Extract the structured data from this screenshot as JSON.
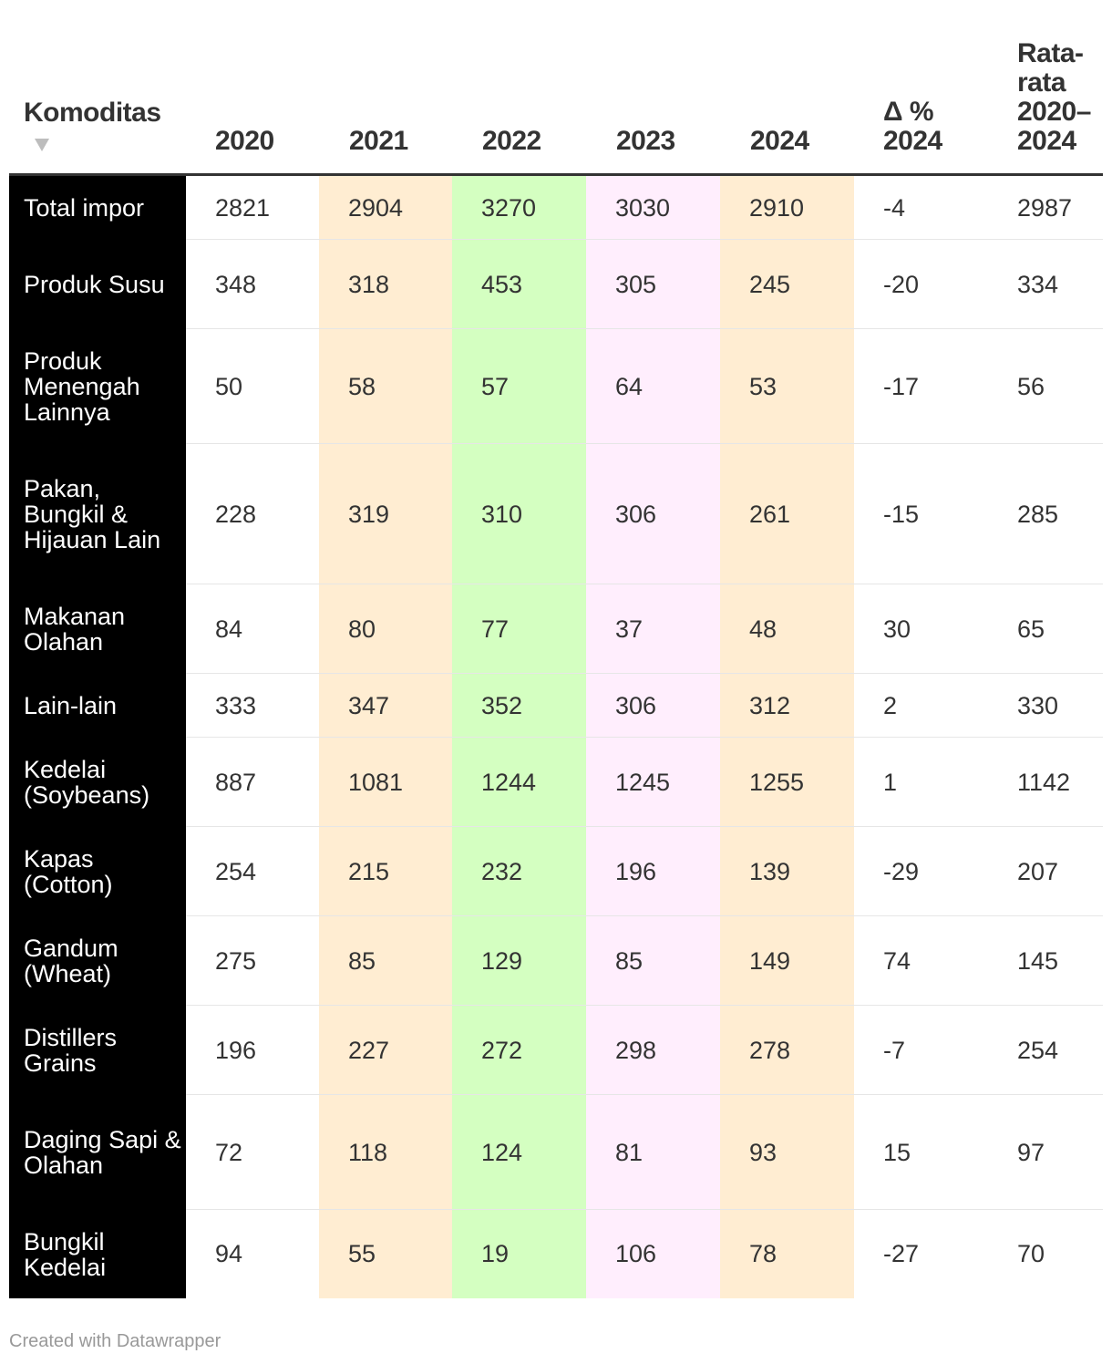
{
  "chart_data": {
    "type": "table",
    "columns": [
      "Komoditas",
      "2020",
      "2021",
      "2022",
      "2023",
      "2024",
      "Δ % 2024",
      "Rata-rata 2020–2024"
    ],
    "column_colors": [
      "#000000",
      "#ffffff",
      "#ffedd2",
      "#d4ffc1",
      "#ffeefd",
      "#ffedd2",
      "#ffffff",
      "#ffffff"
    ],
    "rows": [
      {
        "label": "Total impor",
        "values": [
          "2821",
          "2904",
          "3270",
          "3030",
          "2910",
          "-4",
          "2987"
        ]
      },
      {
        "label": "Produk Susu",
        "values": [
          "348",
          "318",
          "453",
          "305",
          "245",
          "-20",
          "334"
        ]
      },
      {
        "label": "Produk Menengah Lainnya",
        "values": [
          "50",
          "58",
          "57",
          "64",
          "53",
          "-17",
          "56"
        ]
      },
      {
        "label": "Pakan, Bungkil & Hijauan Lain",
        "values": [
          "228",
          "319",
          "310",
          "306",
          "261",
          "-15",
          "285"
        ]
      },
      {
        "label": "Makanan Olahan",
        "values": [
          "84",
          "80",
          "77",
          "37",
          "48",
          "30",
          "65"
        ]
      },
      {
        "label": "Lain-lain",
        "values": [
          "333",
          "347",
          "352",
          "306",
          "312",
          "2",
          "330"
        ]
      },
      {
        "label": "Kedelai (Soybeans)",
        "values": [
          "887",
          "1081",
          "1244",
          "1245",
          "1255",
          "1",
          "1142"
        ]
      },
      {
        "label": "Kapas (Cotton)",
        "values": [
          "254",
          "215",
          "232",
          "196",
          "139",
          "-29",
          "207"
        ]
      },
      {
        "label": "Gandum (Wheat)",
        "values": [
          "275",
          "85",
          "129",
          "85",
          "149",
          "74",
          "145"
        ]
      },
      {
        "label": "Distillers Grains",
        "values": [
          "196",
          "227",
          "272",
          "298",
          "278",
          "-7",
          "254"
        ]
      },
      {
        "label": "Daging Sapi & Olahan",
        "values": [
          "72",
          "118",
          "124",
          "81",
          "93",
          "15",
          "97"
        ]
      },
      {
        "label": "Bungkil Kedelai",
        "values": [
          "94",
          "55",
          "19",
          "106",
          "78",
          "-27",
          "70"
        ]
      }
    ]
  },
  "footer": {
    "credit": "Created with Datawrapper"
  }
}
